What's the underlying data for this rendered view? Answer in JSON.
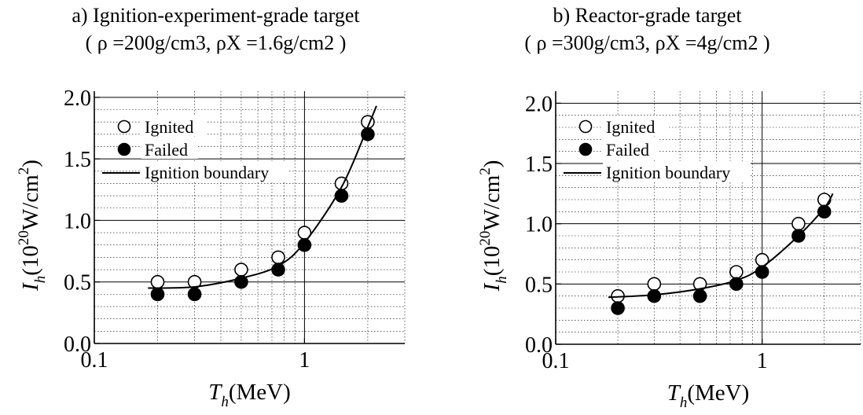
{
  "chart_data": [
    {
      "type": "scatter",
      "title": "a) Ignition-experiment-grade target",
      "subtitle": "( ρ =200g/cm3, ρX =1.6g/cm2 )",
      "xlabel": {
        "main": "T",
        "sub": "h",
        "rest": "(MeV)"
      },
      "ylabel": {
        "main": "I",
        "sub": "h",
        "rest": "(10",
        "sup": "20",
        "rest2": "W/cm",
        "sup2": "2",
        "close": ")"
      },
      "x_scale": "log",
      "xlim": [
        0.1,
        3
      ],
      "ylim": [
        0,
        2.05
      ],
      "x_tick_labels": [
        "0.1",
        "1"
      ],
      "y_tick_labels": [
        "0.0",
        "0.5",
        "1.0",
        "1.5",
        "2.0"
      ],
      "grid": true,
      "legend_position": "top-left",
      "series": [
        {
          "name": "Ignited",
          "marker": "open-circle",
          "x": [
            0.2,
            0.3,
            0.5,
            0.75,
            1.0,
            1.5,
            2.0
          ],
          "y": [
            0.5,
            0.5,
            0.6,
            0.7,
            0.9,
            1.3,
            1.8
          ]
        },
        {
          "name": "Failed",
          "marker": "filled-circle",
          "x": [
            0.2,
            0.3,
            0.5,
            0.75,
            1.0,
            1.5,
            2.0
          ],
          "y": [
            0.4,
            0.4,
            0.5,
            0.6,
            0.8,
            1.2,
            1.7
          ]
        },
        {
          "name": "Ignition boundary",
          "marker": "line",
          "x": [
            0.18,
            0.3,
            0.5,
            0.75,
            1.0,
            1.5,
            2.0,
            2.2
          ],
          "y": [
            0.45,
            0.46,
            0.53,
            0.63,
            0.82,
            1.27,
            1.76,
            1.93
          ]
        }
      ]
    },
    {
      "type": "scatter",
      "title": "b) Reactor-grade target",
      "subtitle": "( ρ =300g/cm3, ρX =4g/cm2 )",
      "xlabel": {
        "main": "T",
        "sub": "h",
        "rest": "(MeV)"
      },
      "ylabel": {
        "main": "I",
        "sub": "h",
        "rest": "(10",
        "sup": "20",
        "rest2": "W/cm",
        "sup2": "2",
        "close": ")"
      },
      "x_scale": "log",
      "xlim": [
        0.1,
        3
      ],
      "ylim": [
        0,
        2.1
      ],
      "x_tick_labels": [
        "0.1",
        "1"
      ],
      "y_tick_labels": [
        "0.0",
        "0.5",
        "1.0",
        "1.5",
        "2.0"
      ],
      "grid": true,
      "legend_position": "top-left",
      "series": [
        {
          "name": "Ignited",
          "marker": "open-circle",
          "x": [
            0.2,
            0.3,
            0.5,
            0.75,
            1.0,
            1.5,
            2.0
          ],
          "y": [
            0.4,
            0.5,
            0.5,
            0.6,
            0.7,
            1.0,
            1.2
          ]
        },
        {
          "name": "Failed",
          "marker": "filled-circle",
          "x": [
            0.2,
            0.3,
            0.5,
            0.75,
            1.0,
            1.5,
            2.0
          ],
          "y": [
            0.3,
            0.4,
            0.4,
            0.5,
            0.6,
            0.9,
            1.1
          ]
        },
        {
          "name": "Ignition boundary",
          "marker": "line",
          "x": [
            0.18,
            0.3,
            0.5,
            0.75,
            1.0,
            1.5,
            2.0,
            2.2
          ],
          "y": [
            0.39,
            0.41,
            0.46,
            0.53,
            0.64,
            0.9,
            1.13,
            1.25
          ]
        }
      ]
    }
  ]
}
